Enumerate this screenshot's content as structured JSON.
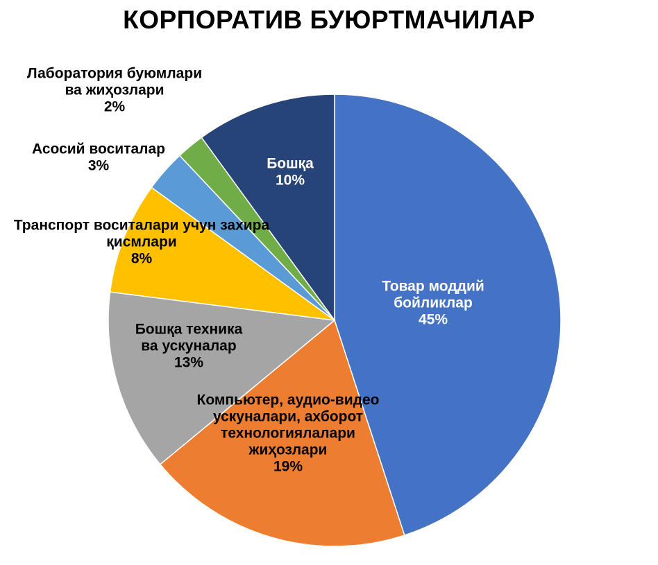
{
  "chart_data": {
    "type": "pie",
    "title": "КОРПОРАТИВ БУЮРТМАЧИЛАР",
    "slices": [
      {
        "label": "Товар моддий бойликлар",
        "label_lines": [
          "Товар моддий",
          "бойликлар"
        ],
        "pct_text": "45%",
        "value": 45,
        "color": "#4472C4",
        "text_color": "#ffffff",
        "label_position": "inside"
      },
      {
        "label": "Компьютер, аудио-видео ускуналари, ахборот технологиялалари жиҳозлари",
        "label_lines": [
          "Компьютер, аудио-видео",
          "ускуналари, ахборот",
          "технологиялалари",
          "жиҳозлари"
        ],
        "pct_text": "19%",
        "value": 19,
        "color": "#ED7D31",
        "text_color": "#000000",
        "label_position": "inside"
      },
      {
        "label": "Бошқа техника ва ускуналар",
        "label_lines": [
          "Бошқа техника",
          "ва ускуналар"
        ],
        "pct_text": "13%",
        "value": 13,
        "color": "#A5A5A5",
        "text_color": "#000000",
        "label_position": "inside"
      },
      {
        "label": "Транспорт воситалари учун захира қисмлари",
        "label_lines": [
          "Транспорт воситалари учун захира",
          "қисмлари"
        ],
        "pct_text": "8%",
        "value": 8,
        "color": "#FFC000",
        "text_color": "#000000",
        "label_position": "outside"
      },
      {
        "label": "Асосий воситалар",
        "label_lines": [
          "Асосий воситалар"
        ],
        "pct_text": "3%",
        "value": 3,
        "color": "#5B9BD5",
        "text_color": "#000000",
        "label_position": "outside"
      },
      {
        "label": "Лаборатория буюмлари ва жиҳозлари",
        "label_lines": [
          "Лаборатория буюмлари",
          "ва жиҳозлари"
        ],
        "pct_text": "2%",
        "value": 2,
        "color": "#70AD47",
        "text_color": "#000000",
        "label_position": "outside"
      },
      {
        "label": "Бошқа",
        "label_lines": [
          "Бошқа"
        ],
        "pct_text": "10%",
        "value": 10,
        "color": "#264478",
        "text_color": "#ffffff",
        "label_position": "inside"
      }
    ],
    "start": "12 o'clock",
    "direction": "clockwise",
    "legend": "none"
  }
}
